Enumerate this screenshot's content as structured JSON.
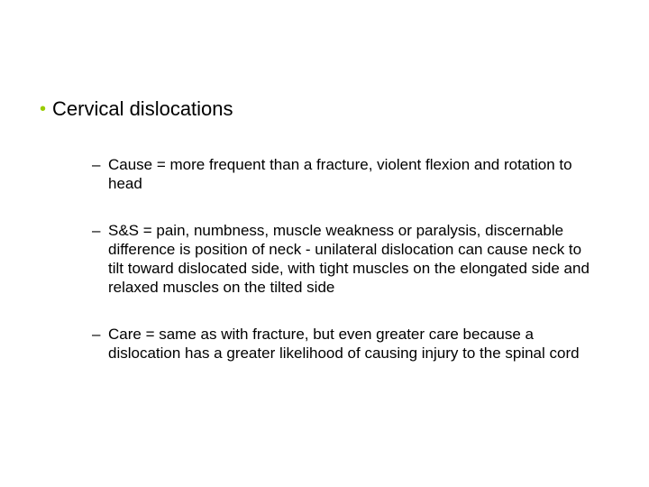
{
  "slide": {
    "background_color": "#ffffff",
    "text_color": "#000000",
    "bullet_accent_color": "#99cc00",
    "main_bullet_fontsize": 22,
    "sub_bullet_fontsize": 17,
    "title": "Cervical dislocations",
    "items": [
      {
        "text": "Cause = more frequent than a fracture, violent flexion and rotation to head"
      },
      {
        "text": "S&S = pain, numbness, muscle weakness or paralysis, discernable difference is position of neck - unilateral dislocation can cause neck to tilt toward dislocated side, with tight muscles on the elongated side and relaxed muscles on the tilted side"
      },
      {
        "text": "Care = same as with fracture, but even greater care because a dislocation has a greater likelihood of causing injury to the spinal cord"
      }
    ]
  }
}
